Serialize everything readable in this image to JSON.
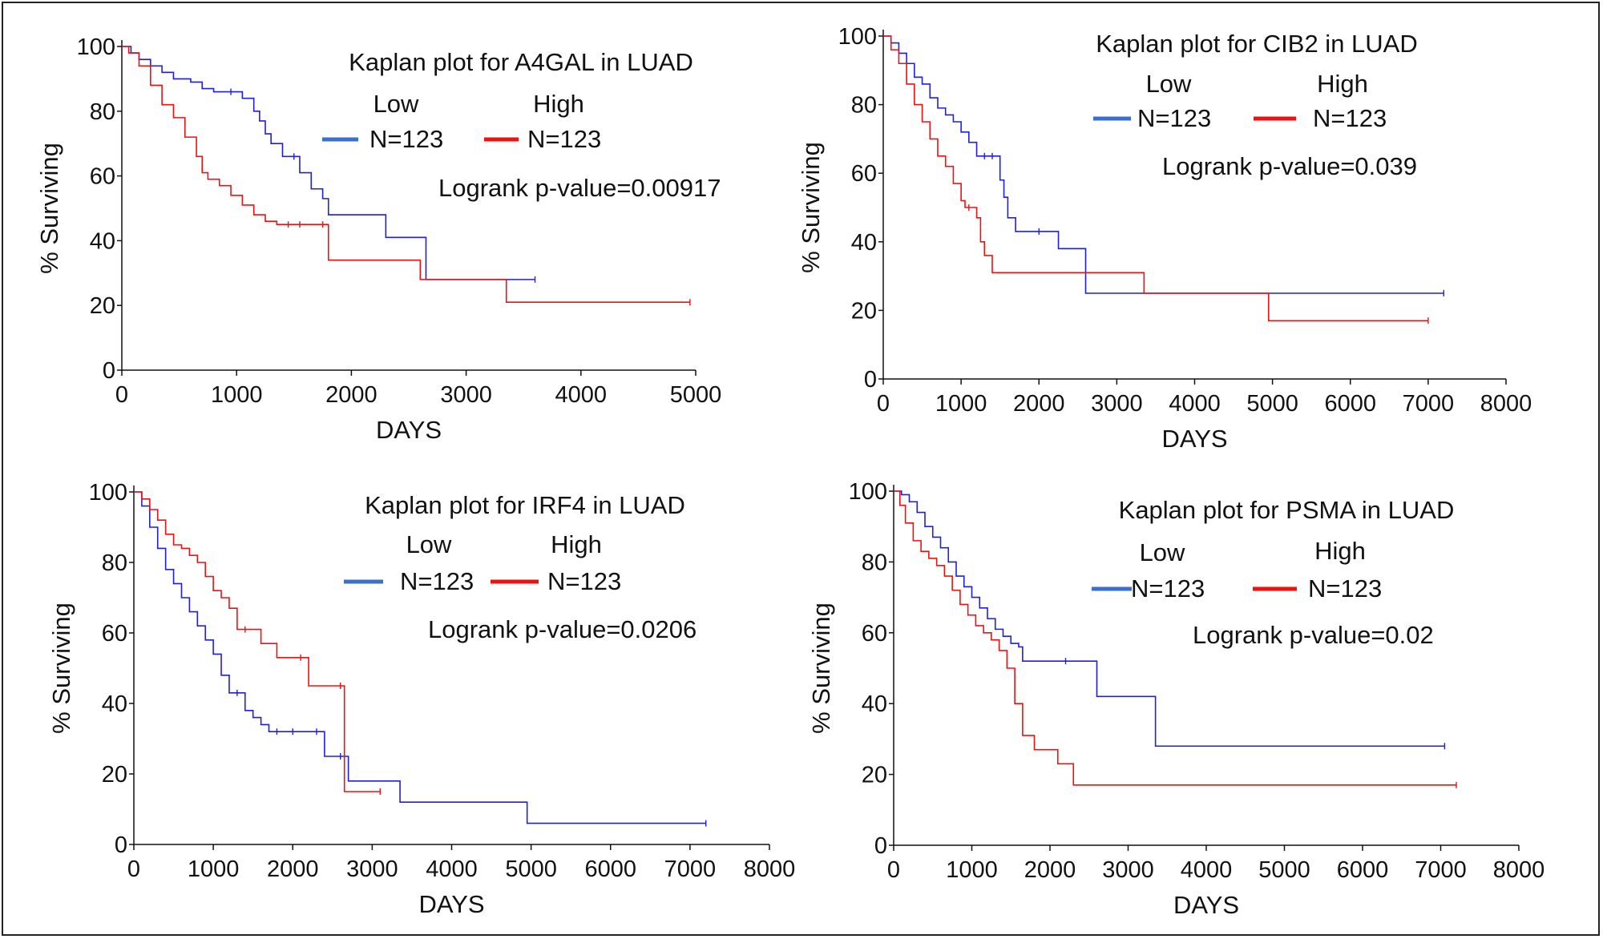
{
  "colors": {
    "low": "#1f1fe0",
    "high": "#ee1111",
    "legend_low": "#3a6fd0",
    "legend_high": "#ee1111",
    "axis": "#111111"
  },
  "chart_data": [
    {
      "type": "line",
      "title": "Kaplan plot for A4GAL in LUAD",
      "xlabel": "DAYS",
      "ylabel": "% Surviving",
      "xlim": [
        0,
        5000
      ],
      "ylim": [
        0,
        100
      ],
      "xticks": [
        "0",
        "1000",
        "2000",
        "3000",
        "4000",
        "5000"
      ],
      "yticks": [
        "0",
        "20",
        "40",
        "60",
        "80",
        "100"
      ],
      "legend": {
        "low_label": "Low",
        "high_label": "High",
        "low_n": "N=123",
        "high_n": "N=123"
      },
      "pvalue": "Logrank p-value=0.00917",
      "series": [
        {
          "name": "Low",
          "x": [
            0,
            80,
            150,
            250,
            350,
            450,
            600,
            700,
            800,
            950,
            1050,
            1150,
            1200,
            1250,
            1300,
            1400,
            1500,
            1550,
            1650,
            1750,
            1800,
            2300,
            2650,
            3600
          ],
          "y": [
            100,
            98,
            96,
            94,
            92,
            90,
            89,
            87,
            86,
            86,
            84,
            80,
            77,
            73,
            70,
            66,
            66,
            61,
            56,
            53,
            48,
            41,
            28,
            28
          ]
        },
        {
          "name": "High",
          "x": [
            0,
            60,
            150,
            250,
            350,
            450,
            550,
            650,
            700,
            750,
            850,
            950,
            1050,
            1150,
            1250,
            1350,
            1450,
            1550,
            1750,
            1800,
            2600,
            3350,
            4950
          ],
          "y": [
            100,
            98,
            94,
            88,
            82,
            78,
            72,
            66,
            61,
            59,
            57,
            54,
            51,
            48,
            46,
            45,
            45,
            45,
            45,
            34,
            28,
            21,
            21
          ]
        }
      ]
    },
    {
      "type": "line",
      "title": "Kaplan plot for CIB2 in LUAD",
      "xlabel": "DAYS",
      "ylabel": "% Surviving",
      "xlim": [
        0,
        8000
      ],
      "ylim": [
        0,
        100
      ],
      "xticks": [
        "0",
        "1000",
        "2000",
        "3000",
        "4000",
        "5000",
        "6000",
        "7000",
        "8000"
      ],
      "yticks": [
        "0",
        "20",
        "40",
        "60",
        "80",
        "100"
      ],
      "legend": {
        "low_label": "Low",
        "high_label": "High",
        "low_n": "N=123",
        "high_n": "N=123"
      },
      "pvalue": "Logrank p-value=0.039",
      "series": [
        {
          "name": "Low",
          "x": [
            0,
            100,
            200,
            300,
            400,
            500,
            600,
            700,
            800,
            900,
            1000,
            1100,
            1200,
            1300,
            1400,
            1500,
            1550,
            1600,
            1700,
            2000,
            2250,
            2600,
            7200
          ],
          "y": [
            100,
            98,
            95,
            92,
            88,
            86,
            82,
            79,
            77,
            75,
            72,
            69,
            65,
            65,
            65,
            58,
            53,
            47,
            43,
            43,
            38,
            25,
            25
          ]
        },
        {
          "name": "High",
          "x": [
            0,
            100,
            200,
            300,
            400,
            500,
            600,
            700,
            800,
            900,
            1000,
            1050,
            1100,
            1200,
            1250,
            1300,
            1400,
            3350,
            4950,
            7000
          ],
          "y": [
            100,
            96,
            92,
            86,
            80,
            75,
            70,
            65,
            62,
            57,
            52,
            50,
            50,
            47,
            40,
            36,
            31,
            25,
            17,
            17
          ]
        }
      ]
    },
    {
      "type": "line",
      "title": "Kaplan plot for IRF4 in LUAD",
      "xlabel": "DAYS",
      "ylabel": "% Surviving",
      "xlim": [
        0,
        8000
      ],
      "ylim": [
        0,
        100
      ],
      "xticks": [
        "0",
        "1000",
        "2000",
        "3000",
        "4000",
        "5000",
        "6000",
        "7000",
        "8000"
      ],
      "yticks": [
        "0",
        "20",
        "40",
        "60",
        "80",
        "100"
      ],
      "legend": {
        "low_label": "Low",
        "high_label": "High",
        "low_n": "N=123",
        "high_n": "N=123"
      },
      "pvalue": "Logrank p-value=0.0206",
      "series": [
        {
          "name": "Low",
          "x": [
            0,
            100,
            200,
            300,
            400,
            500,
            600,
            700,
            800,
            900,
            1000,
            1100,
            1200,
            1300,
            1400,
            1500,
            1600,
            1700,
            1800,
            2000,
            2300,
            2400,
            2600,
            2700,
            3350,
            4950,
            7200
          ],
          "y": [
            100,
            96,
            90,
            84,
            78,
            74,
            70,
            66,
            62,
            58,
            54,
            48,
            43,
            43,
            38,
            36,
            34,
            32,
            32,
            32,
            32,
            25,
            25,
            18,
            12,
            6,
            6
          ]
        },
        {
          "name": "High",
          "x": [
            0,
            100,
            200,
            300,
            400,
            500,
            600,
            700,
            800,
            900,
            1000,
            1100,
            1200,
            1300,
            1400,
            1600,
            1800,
            2100,
            2200,
            2600,
            2650,
            3100
          ],
          "y": [
            100,
            98,
            95,
            92,
            88,
            85,
            84,
            82,
            80,
            76,
            72,
            70,
            67,
            61,
            61,
            57,
            53,
            53,
            45,
            45,
            15,
            15
          ]
        }
      ]
    },
    {
      "type": "line",
      "title": "Kaplan plot for PSMA in LUAD",
      "xlabel": "DAYS",
      "ylabel": "% Surviving",
      "xlim": [
        0,
        8000
      ],
      "ylim": [
        0,
        100
      ],
      "xticks": [
        "0",
        "1000",
        "2000",
        "3000",
        "4000",
        "5000",
        "6000",
        "7000",
        "8000"
      ],
      "yticks": [
        "0",
        "20",
        "40",
        "60",
        "80",
        "100"
      ],
      "legend": {
        "low_label": "Low",
        "high_label": "High",
        "low_n": "N=123",
        "high_n": "N=123"
      },
      "pvalue": "Logrank p-value=0.02",
      "series": [
        {
          "name": "Low",
          "x": [
            0,
            100,
            200,
            300,
            400,
            500,
            600,
            700,
            800,
            900,
            1000,
            1100,
            1200,
            1300,
            1400,
            1500,
            1600,
            1650,
            2200,
            2600,
            3350,
            7050
          ],
          "y": [
            100,
            99,
            97,
            94,
            90,
            87,
            84,
            80,
            76,
            73,
            70,
            67,
            64,
            61,
            59,
            57,
            56,
            52,
            52,
            42,
            28,
            28
          ]
        },
        {
          "name": "High",
          "x": [
            0,
            80,
            150,
            250,
            350,
            450,
            550,
            650,
            750,
            850,
            950,
            1050,
            1150,
            1250,
            1350,
            1450,
            1550,
            1650,
            1800,
            2100,
            2300,
            7200
          ],
          "y": [
            100,
            96,
            91,
            86,
            83,
            81,
            79,
            76,
            72,
            68,
            65,
            62,
            60,
            58,
            55,
            50,
            40,
            31,
            27,
            23,
            17,
            17
          ]
        }
      ]
    }
  ]
}
